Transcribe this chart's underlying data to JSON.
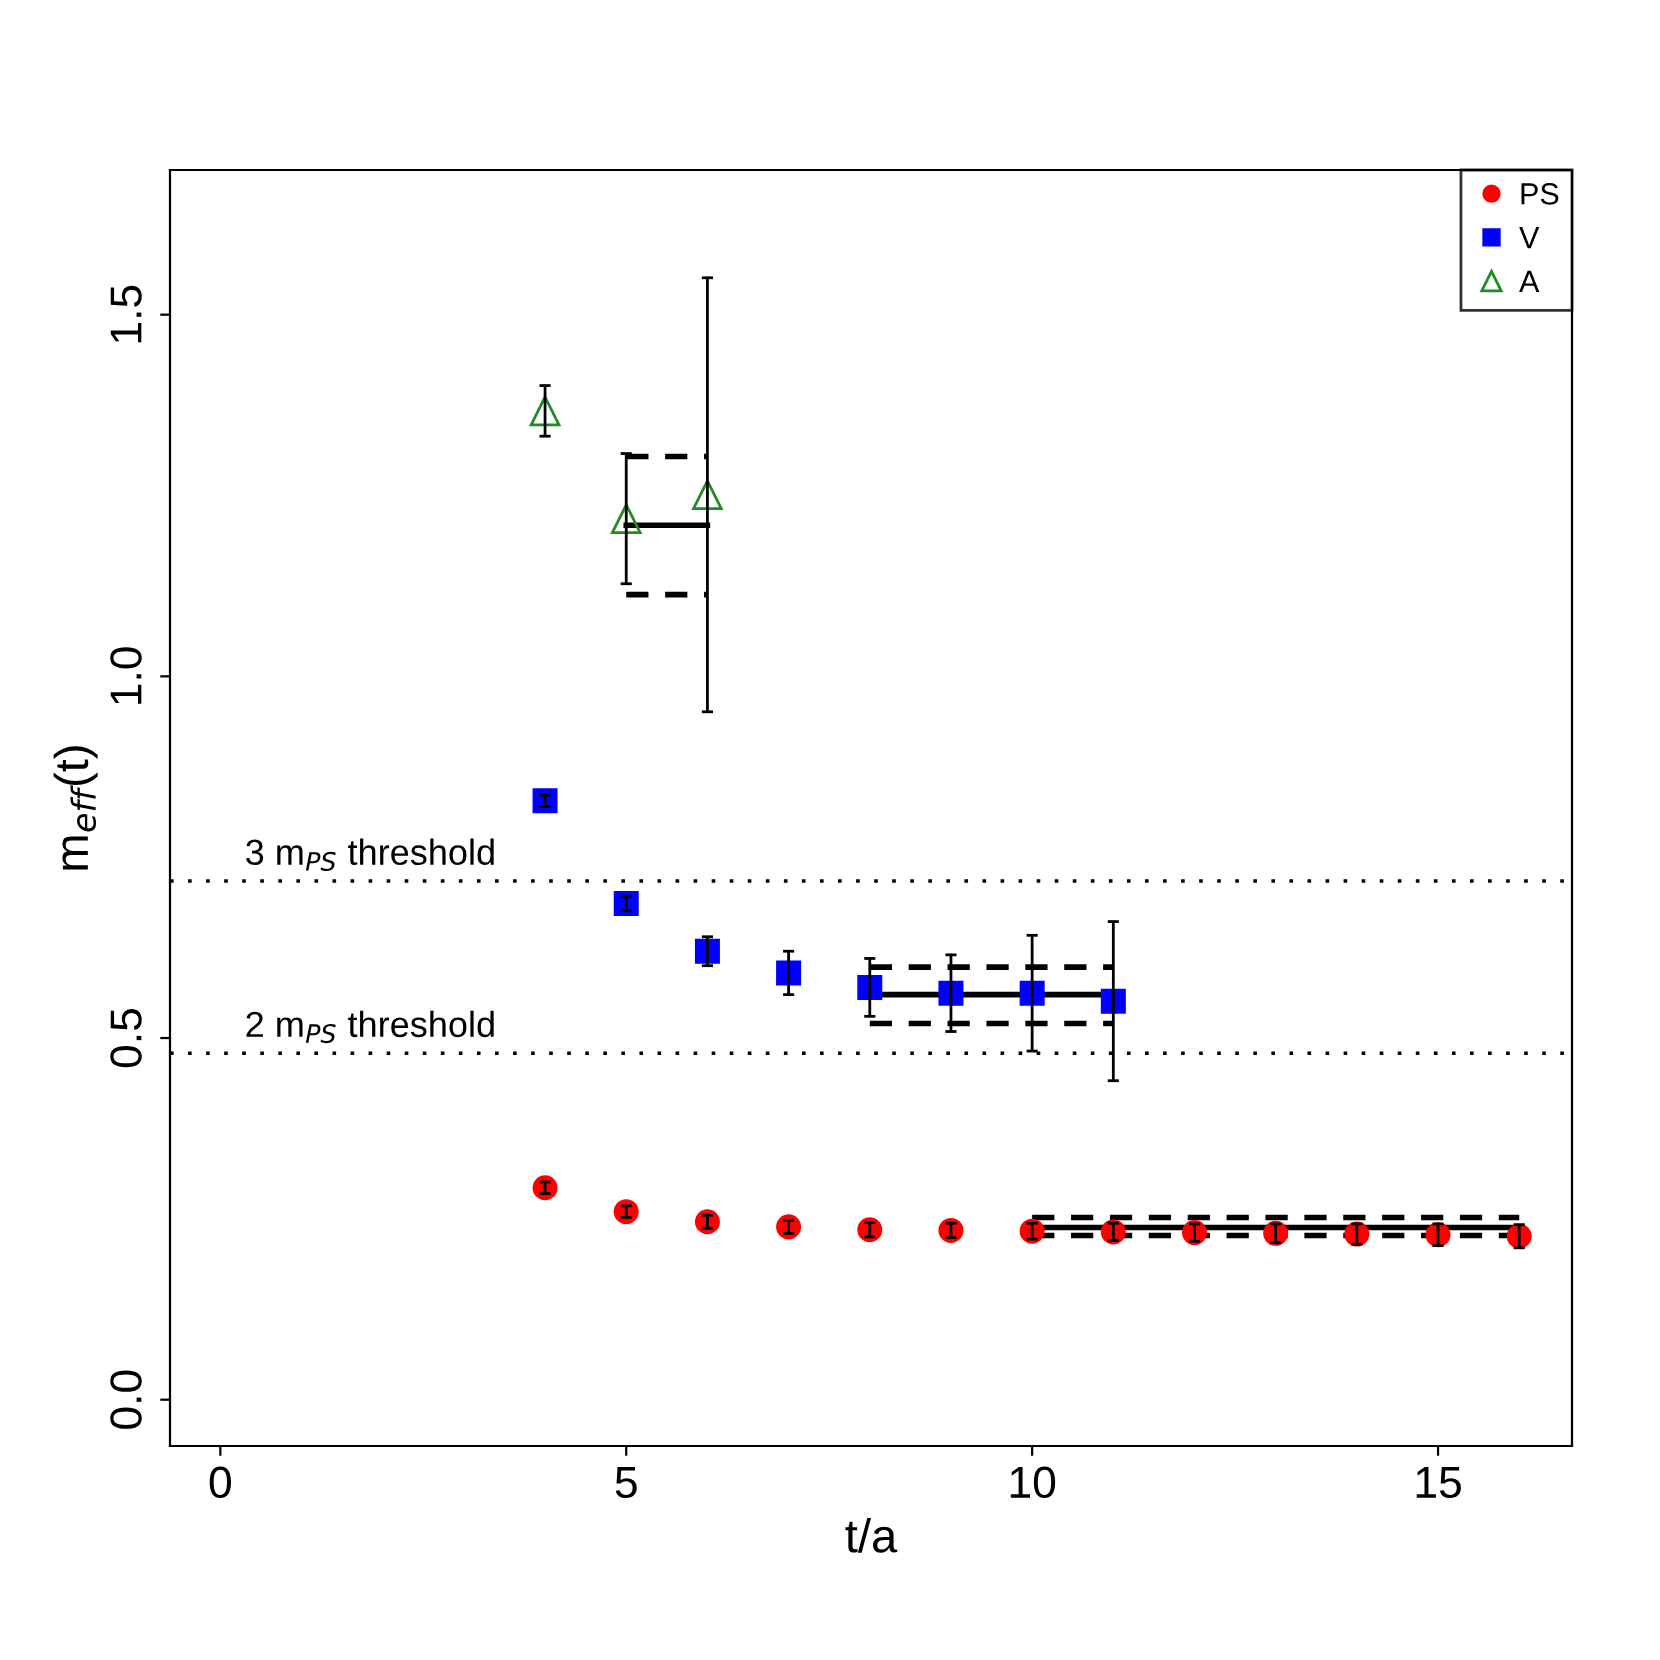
{
  "chart_data": {
    "type": "scatter",
    "xlabel": "t/a",
    "ylabel": "m$_{eff}$(t)",
    "xlim": [
      -0.62,
      16.65
    ],
    "ylim": [
      -0.064,
      1.7
    ],
    "xticks": [
      0,
      5,
      10,
      15
    ],
    "yticks": [
      {
        "value": 0,
        "label": "0.0"
      },
      {
        "value": 0.5,
        "label": "0.5"
      },
      {
        "value": 1,
        "label": "1.0"
      },
      {
        "value": 1.5,
        "label": "1.5"
      }
    ],
    "grid": false,
    "legend": "top right",
    "series": [
      {
        "name": "PS",
        "color": "#ff0000",
        "marker": "circle",
        "x": [
          4,
          5,
          6,
          7,
          8,
          9,
          10,
          11,
          12,
          13,
          14,
          15,
          16
        ],
        "values": [
          0.293,
          0.26,
          0.246,
          0.239,
          0.235,
          0.234,
          0.233,
          0.232,
          0.231,
          0.23,
          0.229,
          0.228,
          0.226
        ],
        "errors": [
          0.008,
          0.008,
          0.009,
          0.009,
          0.01,
          0.01,
          0.011,
          0.012,
          0.012,
          0.013,
          0.014,
          0.015,
          0.016
        ]
      },
      {
        "name": "V",
        "color": "#0000ff",
        "marker": "square",
        "x": [
          4,
          5,
          6,
          7,
          8,
          9,
          10,
          11
        ],
        "values": [
          0.828,
          0.686,
          0.62,
          0.59,
          0.57,
          0.562,
          0.562,
          0.551
        ],
        "errors": [
          0.008,
          0.01,
          0.02,
          0.03,
          0.04,
          0.053,
          0.08,
          0.11
        ]
      },
      {
        "name": "A",
        "color": "#228b22",
        "marker": "triangle",
        "x": [
          4,
          5,
          6
        ],
        "values": [
          1.367,
          1.218,
          1.251
        ],
        "errors": [
          0.035,
          0.09,
          0.3
        ]
      },
      {
        "type": "line",
        "color": "#000000",
        "line_style": "solid",
        "x": [
          10,
          16
        ],
        "values": [
          0.238,
          0.238
        ]
      },
      {
        "type": "line",
        "color": "#000000",
        "line_style": "dashed",
        "x": [
          10,
          16
        ],
        "values": [
          0.227,
          0.227
        ]
      },
      {
        "type": "line",
        "color": "#000000",
        "line_style": "dashed",
        "x": [
          10,
          16
        ],
        "values": [
          0.252,
          0.252
        ]
      },
      {
        "type": "line",
        "color": "#000000",
        "line_style": "solid",
        "x": [
          8,
          11
        ],
        "values": [
          0.56,
          0.56
        ]
      },
      {
        "type": "line",
        "color": "#000000",
        "line_style": "dashed",
        "x": [
          8,
          11
        ],
        "values": [
          0.52,
          0.52
        ]
      },
      {
        "type": "line",
        "color": "#000000",
        "line_style": "dashed",
        "x": [
          8,
          11
        ],
        "values": [
          0.598,
          0.598
        ]
      },
      {
        "type": "line",
        "color": "#000000",
        "line_style": "solid",
        "x": [
          5,
          6
        ],
        "values": [
          1.209,
          1.209
        ]
      },
      {
        "type": "line",
        "color": "#000000",
        "line_style": "dashed",
        "x": [
          5,
          6
        ],
        "values": [
          1.113,
          1.113
        ]
      },
      {
        "type": "line",
        "color": "#000000",
        "line_style": "dashed",
        "x": [
          5,
          6
        ],
        "values": [
          1.304,
          1.304
        ]
      }
    ],
    "ref_lines": [
      {
        "axis": "y",
        "value": 0.717,
        "label": "3 m$_{PS}$ threshold",
        "line_style": "dotted",
        "color": "#000000"
      },
      {
        "axis": "y",
        "value": 0.479,
        "label": "2 m$_{PS}$ threshold",
        "line_style": "dotted",
        "color": "#000000"
      }
    ]
  }
}
